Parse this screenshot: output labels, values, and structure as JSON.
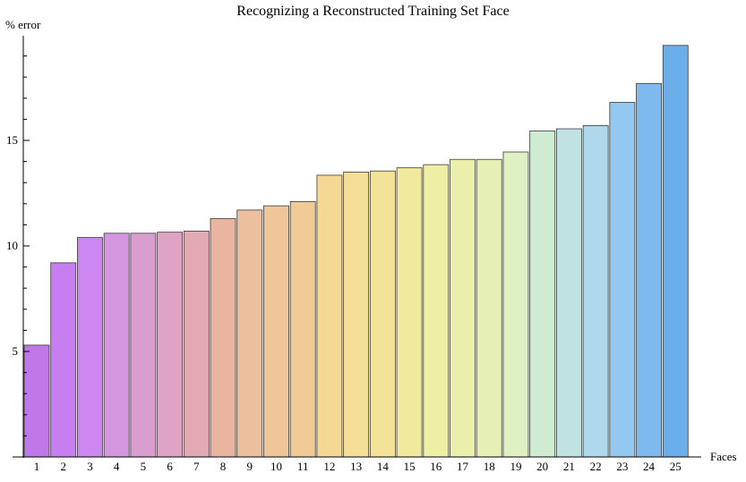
{
  "chart_data": {
    "type": "bar",
    "title": "Recognizing a Reconstructed Training Set Face",
    "xlabel": "Faces",
    "ylabel": "% error",
    "categories": [
      "1",
      "2",
      "3",
      "4",
      "5",
      "6",
      "7",
      "8",
      "9",
      "10",
      "11",
      "12",
      "13",
      "14",
      "15",
      "16",
      "17",
      "18",
      "19",
      "20",
      "21",
      "22",
      "23",
      "24",
      "25"
    ],
    "values": [
      5.3,
      9.2,
      10.4,
      10.6,
      10.6,
      10.65,
      10.7,
      11.3,
      11.7,
      11.9,
      12.1,
      13.35,
      13.5,
      13.55,
      13.7,
      13.85,
      14.1,
      14.1,
      14.45,
      15.45,
      15.55,
      15.7,
      16.8,
      17.7,
      19.5
    ],
    "colors": [
      "#c077e8",
      "#c77ef0",
      "#cc88f0",
      "#d596e0",
      "#d99dd0",
      "#dfa4c4",
      "#e4aab3",
      "#e9b5a0",
      "#ecbf9e",
      "#efc697",
      "#f1cb95",
      "#f5d894",
      "#f5df96",
      "#f3e399",
      "#f1e99e",
      "#eeefa2",
      "#eaf0ac",
      "#e6f0b5",
      "#dff0c3",
      "#cfebd2",
      "#c0e3e2",
      "#aed8ec",
      "#95c8f0",
      "#7fbaee",
      "#6aaeea"
    ],
    "yticks": [
      5,
      10,
      15
    ],
    "ylim": [
      0,
      20
    ],
    "grid": false,
    "legend": "none"
  }
}
